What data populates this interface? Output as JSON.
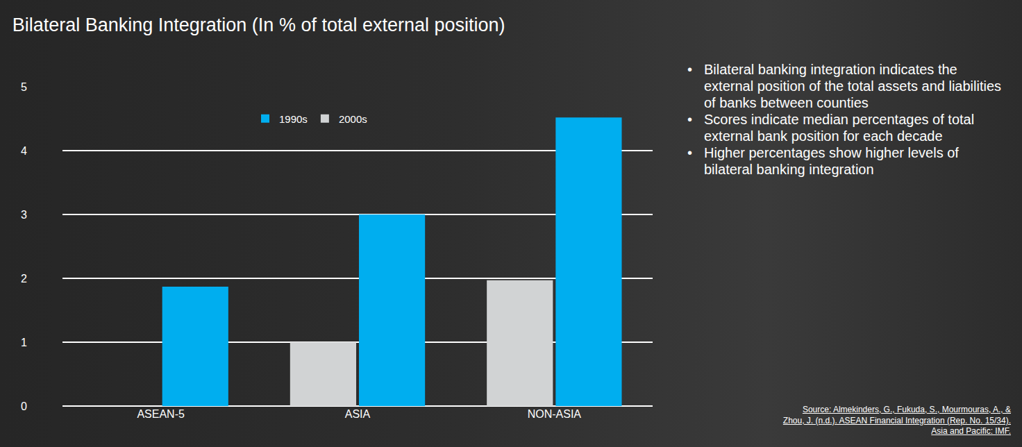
{
  "chart_data": {
    "type": "bar",
    "title": "Bilateral Banking Integration (In % of total external position)",
    "categories": [
      "ASEAN-5",
      "ASIA",
      "NON-ASIA"
    ],
    "series": [
      {
        "name": "1990s",
        "color": "#00aeef",
        "values": [
          1.87,
          3.0,
          4.52
        ]
      },
      {
        "name": "2000s",
        "color": "#d1d3d4",
        "values": [
          null,
          1.0,
          1.97
        ]
      }
    ],
    "ylim": [
      0,
      5
    ],
    "yticks": [
      0,
      1,
      2,
      3,
      4,
      5
    ],
    "grid": true,
    "legend": "top"
  },
  "bullets": [
    "Bilateral banking integration indicates the external position of the total assets and liabilities of banks between counties",
    "Scores indicate median percentages of total external bank position for each decade",
    "Higher percentages show higher levels of bilateral banking integration"
  ],
  "source": "Source: Almekinders, G., Fukuda, S., Mourmouras, A., & Zhou, J. (n.d.). ASEAN Financial Integration (Rep. No. 15/34). Asia and Pacific: IMF."
}
